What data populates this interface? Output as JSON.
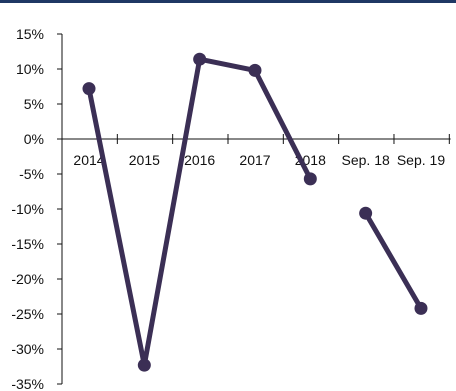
{
  "chart_data": {
    "type": "line",
    "categories": [
      "2014",
      "2015",
      "2016",
      "2017",
      "2018",
      "Sep. 18",
      "Sep. 19"
    ],
    "y_tick_labels": [
      "15%",
      "10%",
      "5%",
      "0%",
      "-5%",
      "-10%",
      "-15%",
      "-20%",
      "-25%",
      "-30%",
      "-35%"
    ],
    "ylim": [
      -35,
      15
    ],
    "y_unit": "%",
    "grid": false,
    "series": [
      {
        "color": "#3b2f55",
        "segments": [
          {
            "categories": [
              "2014",
              "2015",
              "2016",
              "2017",
              "2018"
            ],
            "values": [
              7.2,
              -32.3,
              11.4,
              9.8,
              -5.7
            ]
          },
          {
            "categories": [
              "Sep. 18",
              "Sep. 19"
            ],
            "values": [
              -10.6,
              -24.2
            ]
          }
        ]
      }
    ]
  },
  "header": {
    "rule_color": "#1f3864"
  }
}
